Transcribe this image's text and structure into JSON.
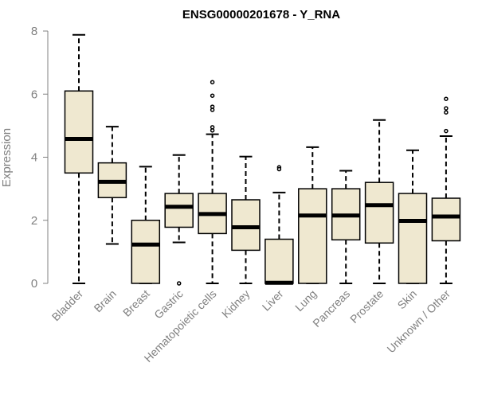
{
  "chart_data": {
    "type": "boxplot",
    "title": "ENSG00000201678 - Y_RNA",
    "ylabel": "Expression",
    "xlabel": "",
    "ylim": [
      0,
      8
    ],
    "yticks": [
      0,
      2,
      4,
      6,
      8
    ],
    "grid": false,
    "box_fill": "#efe8d0",
    "categories": [
      "Bladder",
      "Brain",
      "Breast",
      "Gastric",
      "Hematopoietic cells",
      "Kidney",
      "Liver",
      "Lung",
      "Pancreas",
      "Prostate",
      "Skin",
      "Unknown / Other"
    ],
    "boxes": [
      {
        "category": "Bladder",
        "whisker_low": 0,
        "q1": 3.5,
        "median": 4.58,
        "q3": 6.1,
        "whisker_high": 7.88,
        "outliers": []
      },
      {
        "category": "Brain",
        "whisker_low": 1.25,
        "q1": 2.72,
        "median": 3.22,
        "q3": 3.82,
        "whisker_high": 4.97,
        "outliers": []
      },
      {
        "category": "Breast",
        "whisker_low": 0,
        "q1": 0,
        "median": 1.23,
        "q3": 2.0,
        "whisker_high": 3.7,
        "outliers": []
      },
      {
        "category": "Gastric",
        "whisker_low": 1.3,
        "q1": 1.78,
        "median": 2.43,
        "q3": 2.85,
        "whisker_high": 4.07,
        "outliers": [
          0
        ]
      },
      {
        "category": "Hematopoietic cells",
        "whisker_low": 0,
        "q1": 1.58,
        "median": 2.2,
        "q3": 2.85,
        "whisker_high": 4.73,
        "outliers": [
          6.38,
          5.95,
          5.6,
          5.5,
          4.95,
          4.85
        ]
      },
      {
        "category": "Kidney",
        "whisker_low": 0,
        "q1": 1.05,
        "median": 1.78,
        "q3": 2.65,
        "whisker_high": 4.02,
        "outliers": []
      },
      {
        "category": "Liver",
        "whisker_low": 0,
        "q1": 0,
        "median": 0.02,
        "q3": 1.4,
        "whisker_high": 2.88,
        "outliers": [
          3.68,
          3.62
        ]
      },
      {
        "category": "Lung",
        "whisker_low": 0,
        "q1": 0,
        "median": 2.15,
        "q3": 3.0,
        "whisker_high": 4.32,
        "outliers": []
      },
      {
        "category": "Pancreas",
        "whisker_low": 0,
        "q1": 1.38,
        "median": 2.15,
        "q3": 3.0,
        "whisker_high": 3.57,
        "outliers": []
      },
      {
        "category": "Prostate",
        "whisker_low": 0,
        "q1": 1.28,
        "median": 2.48,
        "q3": 3.2,
        "whisker_high": 5.18,
        "outliers": []
      },
      {
        "category": "Skin",
        "whisker_low": 0,
        "q1": 0,
        "median": 1.98,
        "q3": 2.85,
        "whisker_high": 4.22,
        "outliers": []
      },
      {
        "category": "Unknown / Other",
        "whisker_low": 0,
        "q1": 1.35,
        "median": 2.12,
        "q3": 2.7,
        "whisker_high": 4.67,
        "outliers": [
          5.85,
          5.55,
          5.42,
          4.83
        ]
      }
    ]
  }
}
